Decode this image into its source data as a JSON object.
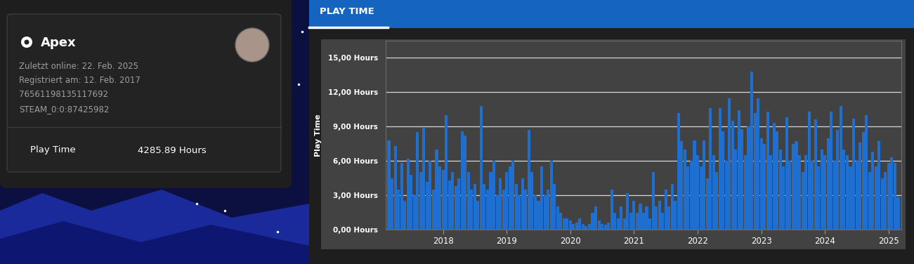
{
  "tab": "PLAY TIME",
  "profile": {
    "name": "Apex",
    "details": [
      "Zuletzt online: 22. Feb. 2025",
      "Registriert am: 12. Feb. 2017",
      "76561198135117692",
      "STEAM_0:0:87425982"
    ],
    "stat_label": "Play Time",
    "stat_value": "4285.89 Hours"
  },
  "chart_data": {
    "type": "bar",
    "y_label": "Play Time",
    "color": "#1e6fd0",
    "grid": true,
    "x": [
      2017.15,
      2017.2,
      2017.25,
      2017.3,
      2017.35,
      2017.4,
      2017.45,
      2017.5,
      2017.55,
      2017.6,
      2017.65,
      2017.7,
      2017.75,
      2017.8,
      2017.85,
      2017.9,
      2017.95,
      2018.0,
      2018.05,
      2018.1,
      2018.15,
      2018.2,
      2018.25,
      2018.3,
      2018.35,
      2018.4,
      2018.45,
      2018.5,
      2018.55,
      2018.6,
      2018.65,
      2018.7,
      2018.75,
      2018.8,
      2018.85,
      2018.9,
      2018.95,
      2019.0,
      2019.05,
      2019.1,
      2019.15,
      2019.2,
      2019.25,
      2019.3,
      2019.35,
      2019.4,
      2019.45,
      2019.5,
      2019.55,
      2019.6,
      2019.65,
      2019.7,
      2019.75,
      2019.8,
      2019.85,
      2019.9,
      2019.95,
      2020.0,
      2020.05,
      2020.1,
      2020.15,
      2020.2,
      2020.25,
      2020.3,
      2020.35,
      2020.4,
      2020.45,
      2020.5,
      2020.55,
      2020.6,
      2020.65,
      2020.7,
      2020.75,
      2020.8,
      2020.85,
      2020.9,
      2020.95,
      2021.0,
      2021.05,
      2021.1,
      2021.15,
      2021.2,
      2021.25,
      2021.3,
      2021.35,
      2021.4,
      2021.45,
      2021.5,
      2021.55,
      2021.6,
      2021.65,
      2021.7,
      2021.75,
      2021.8,
      2021.85,
      2021.9,
      2021.95,
      2022.0,
      2022.05,
      2022.1,
      2022.15,
      2022.2,
      2022.25,
      2022.3,
      2022.35,
      2022.4,
      2022.45,
      2022.5,
      2022.55,
      2022.6,
      2022.65,
      2022.7,
      2022.75,
      2022.8,
      2022.85,
      2022.9,
      2022.95,
      2023.0,
      2023.05,
      2023.1,
      2023.15,
      2023.2,
      2023.25,
      2023.3,
      2023.35,
      2023.4,
      2023.45,
      2023.5,
      2023.55,
      2023.6,
      2023.65,
      2023.7,
      2023.75,
      2023.8,
      2023.85,
      2023.9,
      2023.95,
      2024.0,
      2024.05,
      2024.1,
      2024.15,
      2024.2,
      2024.25,
      2024.3,
      2024.35,
      2024.4,
      2024.45,
      2024.5,
      2024.55,
      2024.6,
      2024.65,
      2024.7,
      2024.75,
      2024.8,
      2024.85,
      2024.9,
      2024.95,
      2025.0,
      2025.05,
      2025.1,
      2025.15
    ],
    "values": [
      7.8,
      4.5,
      7.3,
      3.5,
      5.8,
      2.5,
      6.2,
      4.8,
      3.0,
      8.5,
      5.0,
      8.9,
      4.2,
      6.0,
      3.5,
      7.0,
      5.5,
      5.2,
      10.0,
      4.3,
      5.0,
      3.8,
      4.5,
      8.6,
      8.2,
      5.0,
      3.5,
      4.0,
      2.5,
      10.8,
      4.0,
      3.5,
      5.0,
      6.0,
      3.0,
      4.5,
      3.5,
      5.0,
      5.5,
      6.0,
      4.0,
      3.0,
      4.5,
      3.5,
      8.7,
      5.0,
      3.0,
      2.5,
      5.5,
      3.0,
      3.5,
      6.0,
      4.0,
      2.0,
      1.5,
      1.0,
      1.0,
      0.8,
      0.5,
      0.6,
      1.0,
      0.5,
      0.3,
      0.5,
      1.5,
      2.0,
      0.8,
      0.5,
      0.4,
      0.6,
      3.5,
      1.5,
      1.0,
      2.0,
      1.0,
      3.2,
      1.5,
      2.5,
      1.5,
      2.3,
      1.5,
      2.0,
      1.0,
      5.0,
      2.0,
      2.5,
      1.5,
      3.5,
      2.0,
      4.0,
      2.5,
      10.2,
      7.7,
      7.0,
      5.5,
      6.0,
      7.8,
      6.5,
      5.5,
      7.8,
      4.5,
      10.6,
      6.5,
      5.0,
      10.6,
      8.6,
      6.0,
      11.5,
      9.5,
      7.0,
      10.4,
      8.8,
      6.5,
      9.0,
      13.8,
      10.2,
      11.5,
      8.0,
      7.5,
      10.3,
      6.5,
      9.3,
      8.6,
      7.0,
      5.5,
      9.8,
      6.0,
      7.5,
      7.7,
      6.5,
      5.0,
      6.5,
      10.3,
      6.0,
      9.6,
      5.5,
      7.0,
      6.5,
      8.0,
      10.3,
      6.0,
      8.7,
      10.8,
      7.0,
      6.5,
      5.5,
      9.7,
      6.0,
      7.6,
      8.5,
      10.0,
      5.0,
      6.8,
      5.5,
      7.7,
      4.5,
      5.0,
      5.8,
      6.3,
      5.8,
      2.8
    ],
    "xlim": [
      2017.1,
      2025.2
    ],
    "xticks": [
      2018,
      2019,
      2020,
      2021,
      2022,
      2023,
      2024,
      2025
    ],
    "ylim": [
      0,
      16.5
    ],
    "yticks": [
      {
        "value": 0,
        "label": "0,00 Hours"
      },
      {
        "value": 3,
        "label": "3,00 Hours"
      },
      {
        "value": 6,
        "label": "6,00 Hours"
      },
      {
        "value": 9,
        "label": "9,00 Hours"
      },
      {
        "value": 12,
        "label": "12,00 Hours"
      },
      {
        "value": 15,
        "label": "15,00 Hours"
      }
    ]
  }
}
